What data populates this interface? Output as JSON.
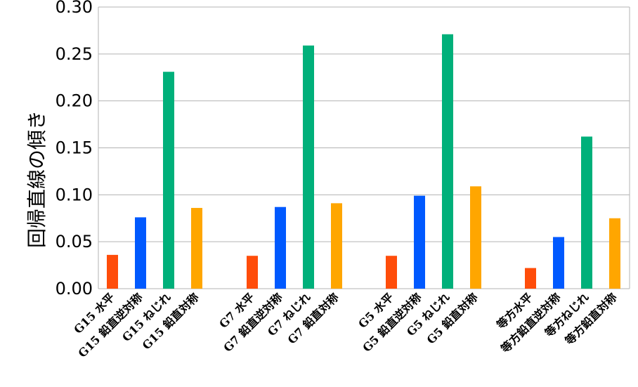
{
  "chart_data": {
    "type": "bar",
    "ylabel": "回帰直線の傾き",
    "xlabel": "",
    "ylim": [
      0,
      0.3
    ],
    "yticks": [
      "0.00",
      "0.05",
      "0.10",
      "0.15",
      "0.20",
      "0.25",
      "0.30"
    ],
    "grid": true,
    "groups": [
      {
        "bars": [
          {
            "label": "G15 水平",
            "value": 0.036,
            "color": "#ff4d0a"
          },
          {
            "label": "G15 鉛直逆対称",
            "value": 0.076,
            "color": "#0059ff"
          },
          {
            "label": "G15 ねじれ",
            "value": 0.231,
            "color": "#00b07a"
          },
          {
            "label": "G15 鉛直対称",
            "value": 0.086,
            "color": "#ffa600"
          }
        ]
      },
      {
        "bars": [
          {
            "label": "G7 水平",
            "value": 0.035,
            "color": "#ff4d0a"
          },
          {
            "label": "G7 鉛直逆対称",
            "value": 0.087,
            "color": "#0059ff"
          },
          {
            "label": "G7 ねじれ",
            "value": 0.259,
            "color": "#00b07a"
          },
          {
            "label": "G7 鉛直対称",
            "value": 0.091,
            "color": "#ffa600"
          }
        ]
      },
      {
        "bars": [
          {
            "label": "G5 水平",
            "value": 0.035,
            "color": "#ff4d0a"
          },
          {
            "label": "G5 鉛直逆対称",
            "value": 0.099,
            "color": "#0059ff"
          },
          {
            "label": "G5 ねじれ",
            "value": 0.271,
            "color": "#00b07a"
          },
          {
            "label": "G5 鉛直対称",
            "value": 0.109,
            "color": "#ffa600"
          }
        ]
      },
      {
        "bars": [
          {
            "label": "等方水平",
            "value": 0.022,
            "color": "#ff4d0a"
          },
          {
            "label": "等方鉛直逆対称",
            "value": 0.055,
            "color": "#0059ff"
          },
          {
            "label": "等方ねじれ",
            "value": 0.162,
            "color": "#00b07a"
          },
          {
            "label": "等方鉛直対称",
            "value": 0.075,
            "color": "#ffa600"
          }
        ]
      }
    ]
  }
}
